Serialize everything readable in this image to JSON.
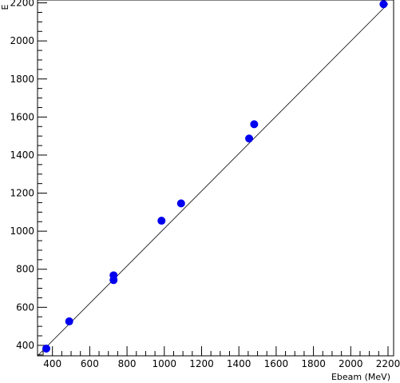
{
  "chart_data": {
    "type": "scatter",
    "title": "",
    "xlabel": "Ebeam (MeV)",
    "ylabel": "E",
    "xlim": [
      320,
      2230
    ],
    "ylim": [
      345,
      2215
    ],
    "x_ticks": [
      400,
      600,
      800,
      1000,
      1200,
      1400,
      1600,
      1800,
      2000,
      2200
    ],
    "y_ticks": [
      400,
      600,
      800,
      1000,
      1200,
      1400,
      1600,
      1800,
      2000,
      2200
    ],
    "grid": false,
    "marker_color": "#0000ee",
    "line_color": "#000000",
    "fit_line": {
      "x": [
        320,
        2200
      ],
      "y": [
        345,
        2195
      ]
    },
    "points": [
      {
        "x": 367,
        "y": 383
      },
      {
        "x": 490,
        "y": 526
      },
      {
        "x": 728,
        "y": 768
      },
      {
        "x": 728,
        "y": 743
      },
      {
        "x": 985,
        "y": 1055
      },
      {
        "x": 1090,
        "y": 1146
      },
      {
        "x": 1455,
        "y": 1487
      },
      {
        "x": 1482,
        "y": 1562
      },
      {
        "x": 2176,
        "y": 2193
      }
    ]
  }
}
